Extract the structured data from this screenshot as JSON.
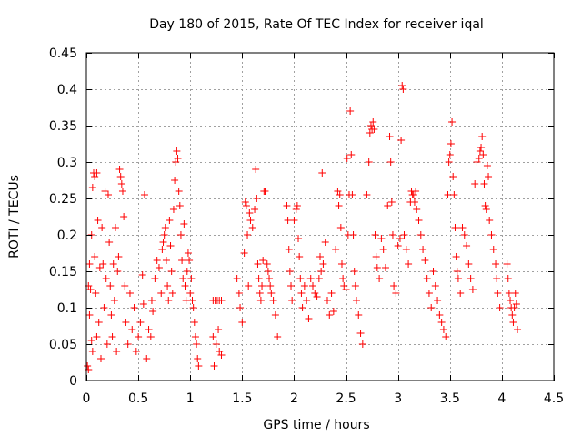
{
  "chart_data": {
    "type": "scatter",
    "title": "Day 180 of 2015, Rate Of TEC Index for receiver iqal",
    "xlabel": "GPS time / hours",
    "ylabel": "ROTI / TECUs",
    "xlim": [
      0,
      4.5
    ],
    "ylim": [
      0,
      0.45
    ],
    "x_ticks": [
      0,
      0.5,
      1,
      1.5,
      2,
      2.5,
      3,
      3.5,
      4,
      4.5
    ],
    "x_tick_labels": [
      "0",
      "0.5",
      "1",
      "1.5",
      "2",
      "2.5",
      "3",
      "3.5",
      "4",
      "4.5"
    ],
    "y_ticks": [
      0,
      0.05,
      0.1,
      0.15,
      0.2,
      0.25,
      0.3,
      0.35,
      0.4,
      0.45
    ],
    "y_tick_labels": [
      "0",
      "0.05",
      "0.1",
      "0.15",
      "0.2",
      "0.25",
      "0.3",
      "0.35",
      "0.4",
      "0.45"
    ],
    "grid": true,
    "marker": "+",
    "series": [
      {
        "name": "ROTI",
        "color": "#ff0000",
        "points": [
          [
            0.01,
            0.02
          ],
          [
            0.02,
            0.015
          ],
          [
            0.02,
            0.13
          ],
          [
            0.03,
            0.16
          ],
          [
            0.03,
            0.09
          ],
          [
            0.04,
            0.125
          ],
          [
            0.05,
            0.055
          ],
          [
            0.05,
            0.2
          ],
          [
            0.06,
            0.04
          ],
          [
            0.06,
            0.265
          ],
          [
            0.07,
            0.285
          ],
          [
            0.08,
            0.28
          ],
          [
            0.08,
            0.17
          ],
          [
            0.09,
            0.12
          ],
          [
            0.1,
            0.285
          ],
          [
            0.1,
            0.06
          ],
          [
            0.11,
            0.22
          ],
          [
            0.12,
            0.08
          ],
          [
            0.13,
            0.155
          ],
          [
            0.14,
            0.03
          ],
          [
            0.15,
            0.21
          ],
          [
            0.16,
            0.16
          ],
          [
            0.17,
            0.1
          ],
          [
            0.18,
            0.26
          ],
          [
            0.19,
            0.14
          ],
          [
            0.2,
            0.05
          ],
          [
            0.21,
            0.255
          ],
          [
            0.22,
            0.19
          ],
          [
            0.23,
            0.13
          ],
          [
            0.24,
            0.09
          ],
          [
            0.25,
            0.06
          ],
          [
            0.26,
            0.16
          ],
          [
            0.27,
            0.11
          ],
          [
            0.28,
            0.21
          ],
          [
            0.29,
            0.04
          ],
          [
            0.3,
            0.15
          ],
          [
            0.31,
            0.17
          ],
          [
            0.32,
            0.29
          ],
          [
            0.33,
            0.28
          ],
          [
            0.34,
            0.27
          ],
          [
            0.35,
            0.26
          ],
          [
            0.36,
            0.225
          ],
          [
            0.37,
            0.13
          ],
          [
            0.38,
            0.08
          ],
          [
            0.4,
            0.05
          ],
          [
            0.42,
            0.12
          ],
          [
            0.44,
            0.07
          ],
          [
            0.46,
            0.1
          ],
          [
            0.48,
            0.04
          ],
          [
            0.5,
            0.06
          ],
          [
            0.52,
            0.08
          ],
          [
            0.54,
            0.145
          ],
          [
            0.55,
            0.105
          ],
          [
            0.56,
            0.255
          ],
          [
            0.58,
            0.03
          ],
          [
            0.6,
            0.07
          ],
          [
            0.62,
            0.06
          ],
          [
            0.63,
            0.11
          ],
          [
            0.64,
            0.095
          ],
          [
            0.66,
            0.14
          ],
          [
            0.68,
            0.165
          ],
          [
            0.7,
            0.155
          ],
          [
            0.72,
            0.12
          ],
          [
            0.73,
            0.18
          ],
          [
            0.74,
            0.19
          ],
          [
            0.75,
            0.2
          ],
          [
            0.76,
            0.21
          ],
          [
            0.77,
            0.165
          ],
          [
            0.78,
            0.13
          ],
          [
            0.79,
            0.11
          ],
          [
            0.8,
            0.22
          ],
          [
            0.81,
            0.185
          ],
          [
            0.82,
            0.15
          ],
          [
            0.83,
            0.12
          ],
          [
            0.84,
            0.235
          ],
          [
            0.85,
            0.275
          ],
          [
            0.86,
            0.3
          ],
          [
            0.87,
            0.315
          ],
          [
            0.88,
            0.305
          ],
          [
            0.89,
            0.26
          ],
          [
            0.9,
            0.24
          ],
          [
            0.91,
            0.2
          ],
          [
            0.92,
            0.165
          ],
          [
            0.93,
            0.14
          ],
          [
            0.94,
            0.215
          ],
          [
            0.95,
            0.13
          ],
          [
            0.96,
            0.11
          ],
          [
            0.97,
            0.15
          ],
          [
            0.98,
            0.175
          ],
          [
            0.99,
            0.165
          ],
          [
            1.0,
            0.12
          ],
          [
            1.01,
            0.14
          ],
          [
            1.02,
            0.11
          ],
          [
            1.03,
            0.1
          ],
          [
            1.04,
            0.08
          ],
          [
            1.05,
            0.06
          ],
          [
            1.06,
            0.05
          ],
          [
            1.07,
            0.03
          ],
          [
            1.08,
            0.02
          ],
          [
            1.22,
            0.11
          ],
          [
            1.24,
            0.11
          ],
          [
            1.26,
            0.11
          ],
          [
            1.28,
            0.11
          ],
          [
            1.3,
            0.11
          ],
          [
            1.22,
            0.06
          ],
          [
            1.25,
            0.05
          ],
          [
            1.28,
            0.04
          ],
          [
            1.3,
            0.035
          ],
          [
            1.23,
            0.02
          ],
          [
            1.27,
            0.07
          ],
          [
            1.45,
            0.14
          ],
          [
            1.47,
            0.12
          ],
          [
            1.48,
            0.1
          ],
          [
            1.5,
            0.08
          ],
          [
            1.52,
            0.175
          ],
          [
            1.53,
            0.245
          ],
          [
            1.54,
            0.24
          ],
          [
            1.55,
            0.2
          ],
          [
            1.56,
            0.13
          ],
          [
            1.57,
            0.23
          ],
          [
            1.58,
            0.22
          ],
          [
            1.6,
            0.21
          ],
          [
            1.62,
            0.235
          ],
          [
            1.63,
            0.29
          ],
          [
            1.64,
            0.25
          ],
          [
            1.65,
            0.16
          ],
          [
            1.66,
            0.14
          ],
          [
            1.67,
            0.12
          ],
          [
            1.68,
            0.11
          ],
          [
            1.69,
            0.13
          ],
          [
            1.7,
            0.165
          ],
          [
            1.71,
            0.26
          ],
          [
            1.72,
            0.26
          ],
          [
            1.74,
            0.16
          ],
          [
            1.75,
            0.15
          ],
          [
            1.76,
            0.14
          ],
          [
            1.77,
            0.13
          ],
          [
            1.78,
            0.12
          ],
          [
            1.8,
            0.11
          ],
          [
            1.82,
            0.09
          ],
          [
            1.84,
            0.06
          ],
          [
            1.93,
            0.24
          ],
          [
            1.94,
            0.22
          ],
          [
            1.95,
            0.18
          ],
          [
            1.96,
            0.15
          ],
          [
            1.97,
            0.13
          ],
          [
            1.98,
            0.11
          ],
          [
            2.0,
            0.22
          ],
          [
            2.02,
            0.235
          ],
          [
            2.03,
            0.24
          ],
          [
            2.04,
            0.195
          ],
          [
            2.05,
            0.17
          ],
          [
            2.06,
            0.14
          ],
          [
            2.07,
            0.12
          ],
          [
            2.08,
            0.1
          ],
          [
            2.1,
            0.13
          ],
          [
            2.12,
            0.11
          ],
          [
            2.14,
            0.085
          ],
          [
            2.16,
            0.14
          ],
          [
            2.18,
            0.13
          ],
          [
            2.2,
            0.12
          ],
          [
            2.22,
            0.115
          ],
          [
            2.24,
            0.14
          ],
          [
            2.25,
            0.17
          ],
          [
            2.26,
            0.15
          ],
          [
            2.27,
            0.285
          ],
          [
            2.28,
            0.16
          ],
          [
            2.3,
            0.19
          ],
          [
            2.32,
            0.11
          ],
          [
            2.34,
            0.09
          ],
          [
            2.36,
            0.12
          ],
          [
            2.38,
            0.095
          ],
          [
            2.4,
            0.18
          ],
          [
            2.42,
            0.26
          ],
          [
            2.43,
            0.24
          ],
          [
            2.44,
            0.255
          ],
          [
            2.45,
            0.21
          ],
          [
            2.46,
            0.16
          ],
          [
            2.47,
            0.14
          ],
          [
            2.48,
            0.13
          ],
          [
            2.5,
            0.125
          ],
          [
            2.51,
            0.305
          ],
          [
            2.52,
            0.2
          ],
          [
            2.53,
            0.255
          ],
          [
            2.54,
            0.37
          ],
          [
            2.55,
            0.31
          ],
          [
            2.56,
            0.255
          ],
          [
            2.57,
            0.2
          ],
          [
            2.58,
            0.15
          ],
          [
            2.59,
            0.13
          ],
          [
            2.6,
            0.11
          ],
          [
            2.62,
            0.09
          ],
          [
            2.64,
            0.065
          ],
          [
            2.66,
            0.05
          ],
          [
            2.7,
            0.255
          ],
          [
            2.72,
            0.3
          ],
          [
            2.73,
            0.34
          ],
          [
            2.74,
            0.35
          ],
          [
            2.75,
            0.345
          ],
          [
            2.76,
            0.355
          ],
          [
            2.77,
            0.345
          ],
          [
            2.78,
            0.2
          ],
          [
            2.79,
            0.17
          ],
          [
            2.8,
            0.155
          ],
          [
            2.82,
            0.14
          ],
          [
            2.84,
            0.195
          ],
          [
            2.86,
            0.18
          ],
          [
            2.88,
            0.155
          ],
          [
            2.9,
            0.24
          ],
          [
            2.92,
            0.335
          ],
          [
            2.93,
            0.3
          ],
          [
            2.94,
            0.245
          ],
          [
            2.95,
            0.2
          ],
          [
            2.96,
            0.13
          ],
          [
            2.98,
            0.12
          ],
          [
            3.0,
            0.185
          ],
          [
            3.02,
            0.195
          ],
          [
            3.03,
            0.33
          ],
          [
            3.04,
            0.405
          ],
          [
            3.05,
            0.4
          ],
          [
            3.06,
            0.2
          ],
          [
            3.08,
            0.18
          ],
          [
            3.1,
            0.16
          ],
          [
            3.12,
            0.245
          ],
          [
            3.13,
            0.26
          ],
          [
            3.14,
            0.255
          ],
          [
            3.15,
            0.255
          ],
          [
            3.16,
            0.245
          ],
          [
            3.17,
            0.26
          ],
          [
            3.18,
            0.235
          ],
          [
            3.2,
            0.22
          ],
          [
            3.22,
            0.2
          ],
          [
            3.24,
            0.18
          ],
          [
            3.26,
            0.165
          ],
          [
            3.28,
            0.14
          ],
          [
            3.3,
            0.12
          ],
          [
            3.32,
            0.1
          ],
          [
            3.34,
            0.15
          ],
          [
            3.36,
            0.13
          ],
          [
            3.38,
            0.11
          ],
          [
            3.4,
            0.09
          ],
          [
            3.42,
            0.08
          ],
          [
            3.44,
            0.07
          ],
          [
            3.46,
            0.06
          ],
          [
            3.48,
            0.255
          ],
          [
            3.49,
            0.3
          ],
          [
            3.5,
            0.31
          ],
          [
            3.51,
            0.325
          ],
          [
            3.52,
            0.355
          ],
          [
            3.53,
            0.28
          ],
          [
            3.54,
            0.255
          ],
          [
            3.55,
            0.21
          ],
          [
            3.56,
            0.17
          ],
          [
            3.57,
            0.15
          ],
          [
            3.58,
            0.14
          ],
          [
            3.6,
            0.12
          ],
          [
            3.62,
            0.21
          ],
          [
            3.64,
            0.2
          ],
          [
            3.66,
            0.185
          ],
          [
            3.68,
            0.16
          ],
          [
            3.7,
            0.14
          ],
          [
            3.72,
            0.125
          ],
          [
            3.74,
            0.27
          ],
          [
            3.76,
            0.3
          ],
          [
            3.78,
            0.305
          ],
          [
            3.79,
            0.315
          ],
          [
            3.8,
            0.32
          ],
          [
            3.81,
            0.335
          ],
          [
            3.82,
            0.31
          ],
          [
            3.83,
            0.27
          ],
          [
            3.84,
            0.24
          ],
          [
            3.85,
            0.235
          ],
          [
            3.86,
            0.295
          ],
          [
            3.87,
            0.28
          ],
          [
            3.88,
            0.22
          ],
          [
            3.9,
            0.2
          ],
          [
            3.92,
            0.18
          ],
          [
            3.94,
            0.16
          ],
          [
            3.95,
            0.14
          ],
          [
            3.96,
            0.12
          ],
          [
            3.98,
            0.1
          ],
          [
            4.05,
            0.16
          ],
          [
            4.06,
            0.14
          ],
          [
            4.07,
            0.12
          ],
          [
            4.08,
            0.11
          ],
          [
            4.09,
            0.1
          ],
          [
            4.1,
            0.09
          ],
          [
            4.11,
            0.08
          ],
          [
            4.12,
            0.1
          ],
          [
            4.13,
            0.12
          ],
          [
            4.14,
            0.105
          ],
          [
            4.15,
            0.07
          ]
        ]
      }
    ]
  }
}
